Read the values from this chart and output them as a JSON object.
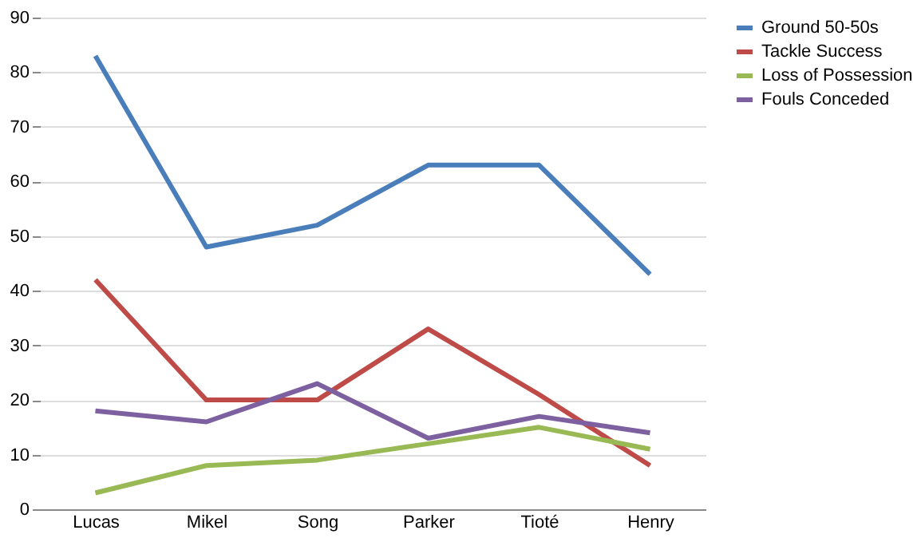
{
  "chart_data": {
    "type": "line",
    "categories": [
      "Lucas",
      "Mikel",
      "Song",
      "Parker",
      "Tioté",
      "Henry"
    ],
    "series": [
      {
        "name": "Ground 50-50s",
        "color": "#4a7ebb",
        "values": [
          83,
          48,
          52,
          63,
          63,
          43
        ]
      },
      {
        "name": "Tackle Success",
        "color": "#be4b48",
        "values": [
          42,
          20,
          20,
          33,
          21,
          8
        ]
      },
      {
        "name": "Loss of Possession",
        "color": "#98b954",
        "values": [
          3,
          8,
          9,
          12,
          15,
          11
        ]
      },
      {
        "name": "Fouls Conceded",
        "color": "#7d60a0",
        "values": [
          18,
          16,
          23,
          13,
          17,
          14
        ]
      }
    ],
    "ylim": [
      0,
      90
    ],
    "yticks": [
      0,
      10,
      20,
      30,
      40,
      50,
      60,
      70,
      80,
      90
    ],
    "grid": "y",
    "legend": "right",
    "marker": "none",
    "line_style": "solid"
  }
}
